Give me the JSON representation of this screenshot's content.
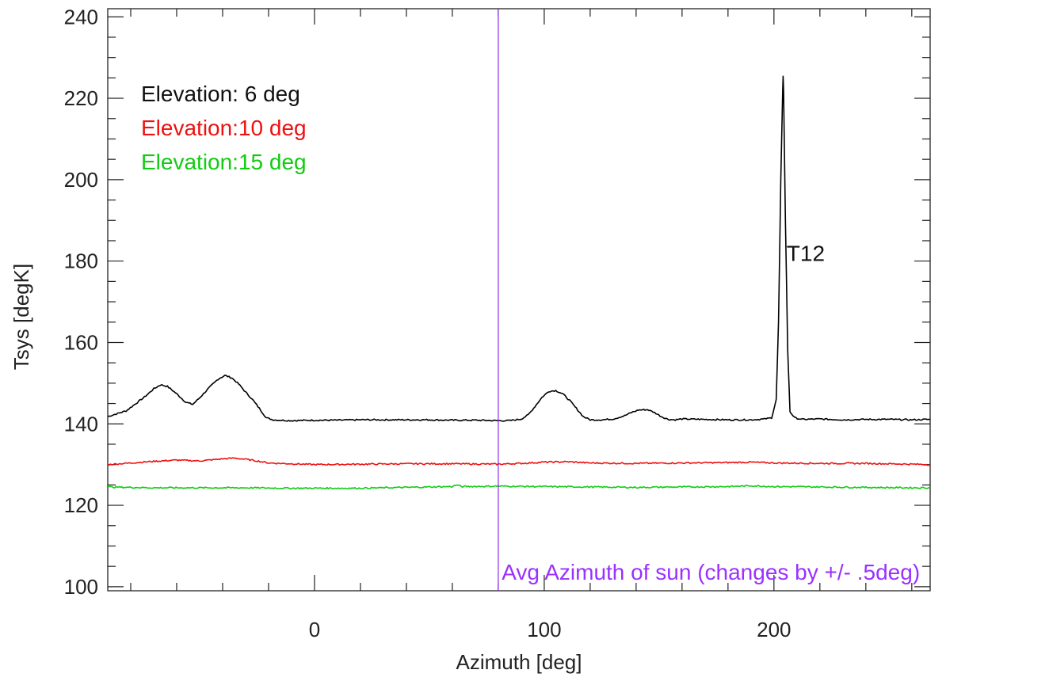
{
  "chart_data": {
    "type": "line",
    "xlabel": "Azimuth [deg]",
    "ylabel": "Tsys [degK]",
    "xlim": [
      -90,
      268
    ],
    "ylim": [
      99,
      242
    ],
    "x_ticks": [
      0,
      100,
      200
    ],
    "x_tick_labels": [
      "0",
      "100",
      "200"
    ],
    "y_ticks": [
      100,
      120,
      140,
      160,
      180,
      200,
      220,
      240
    ],
    "y_tick_labels": [
      "100",
      "120",
      "140",
      "160",
      "180",
      "200",
      "220",
      "240"
    ],
    "grid": false,
    "series": [
      {
        "name": "Elevation: 6 deg",
        "color": "#000000",
        "x": [
          -90,
          -82,
          -74,
          -70,
          -67,
          -64,
          -60,
          -56,
          -53,
          -50,
          -46,
          -42,
          -39,
          -36,
          -33,
          -30,
          -27,
          -24,
          -21,
          -18,
          -15,
          -10,
          0,
          10,
          20,
          30,
          40,
          50,
          60,
          70,
          80,
          85,
          90,
          93,
          96,
          99,
          102,
          105,
          108,
          111,
          114,
          117,
          120,
          125,
          130,
          135,
          138,
          141,
          145,
          148,
          151,
          154,
          157,
          160,
          170,
          180,
          190,
          196,
          199,
          201,
          202,
          203,
          203.8,
          204,
          204.2,
          205,
          206,
          207,
          209,
          212,
          220,
          230,
          240,
          250,
          260,
          268
        ],
        "y": [
          141.8,
          143.2,
          146.6,
          148.6,
          149.6,
          149.2,
          147.4,
          145.3,
          144.8,
          146.4,
          148.8,
          151.0,
          151.9,
          151.3,
          149.8,
          147.8,
          146.0,
          143.8,
          141.5,
          141.0,
          140.9,
          140.8,
          140.9,
          140.9,
          141.0,
          141.0,
          141.0,
          141.0,
          140.9,
          140.9,
          140.8,
          140.8,
          141.2,
          142.2,
          144.3,
          146.5,
          148.0,
          148.2,
          147.4,
          145.8,
          143.8,
          141.8,
          141.0,
          141.0,
          141.2,
          142.0,
          142.8,
          143.4,
          143.5,
          142.8,
          141.8,
          141.1,
          141.0,
          141.2,
          141.1,
          141.0,
          141.0,
          141.2,
          141.5,
          146.0,
          165.0,
          200.0,
          222.0,
          225.5,
          222.0,
          190.0,
          158.0,
          143.0,
          141.5,
          141.1,
          141.2,
          141.0,
          141.1,
          141.1,
          141.0,
          141.1
        ]
      },
      {
        "name": "Elevation:10 deg",
        "color": "#ee1111",
        "x": [
          -90,
          -80,
          -70,
          -60,
          -50,
          -40,
          -35,
          -30,
          -25,
          -20,
          -10,
          0,
          20,
          40,
          60,
          80,
          90,
          100,
          110,
          120,
          140,
          160,
          180,
          190,
          200,
          220,
          240,
          260,
          268
        ],
        "y": [
          130.0,
          130.4,
          130.8,
          131.1,
          130.9,
          131.4,
          131.6,
          131.3,
          130.9,
          130.4,
          130.2,
          130.0,
          130.1,
          130.2,
          130.2,
          130.1,
          130.3,
          130.6,
          130.7,
          130.4,
          130.3,
          130.4,
          130.5,
          130.6,
          130.4,
          130.3,
          130.3,
          130.1,
          130.0
        ]
      },
      {
        "name": "Elevation:15 deg",
        "color": "#11cc11",
        "x": [
          -90,
          -70,
          -50,
          -30,
          -10,
          0,
          20,
          40,
          60,
          62,
          64,
          80,
          100,
          120,
          140,
          160,
          180,
          190,
          200,
          220,
          240,
          260,
          268
        ],
        "y": [
          124.5,
          124.3,
          124.3,
          124.3,
          124.2,
          124.2,
          124.2,
          124.4,
          124.6,
          125.0,
          124.6,
          124.7,
          124.6,
          124.5,
          124.4,
          124.5,
          124.6,
          124.8,
          124.6,
          124.5,
          124.4,
          124.3,
          124.3
        ]
      }
    ],
    "vline": {
      "x": 80,
      "color": "#8a2be2"
    },
    "legend": {
      "placement": "top-left",
      "entries": [
        {
          "text": "Elevation: 6 deg",
          "color": "#111111"
        },
        {
          "text": "Elevation:10 deg",
          "color": "#ee1111"
        },
        {
          "text": "Elevation:15 deg",
          "color": "#11cc11"
        }
      ]
    },
    "annotations": [
      {
        "text": "T12",
        "x": 205.5,
        "y": 182,
        "color": "#111111"
      },
      {
        "text": "Avg Azimuth of sun (changes by +/- .5deg)",
        "x": 81.5,
        "y": 103.7,
        "color": "#9b30ff"
      }
    ]
  }
}
